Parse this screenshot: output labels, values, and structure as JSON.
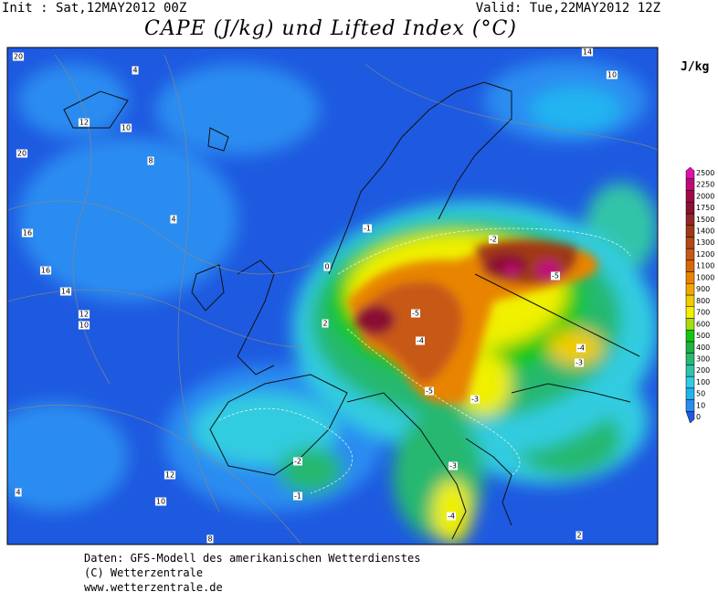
{
  "header": {
    "init": "Init : Sat,12MAY2012 00Z",
    "valid": "Valid: Tue,22MAY2012 12Z",
    "title": "CAPE (J/kg) und Lifted Index (°C)"
  },
  "legend": {
    "unit": "J/kg",
    "levels": [
      0,
      10,
      50,
      100,
      200,
      300,
      400,
      500,
      600,
      700,
      800,
      900,
      1000,
      1100,
      1200,
      1300,
      1400,
      1500,
      1750,
      2000,
      2250,
      2500
    ],
    "colors": [
      "#1e5ae0",
      "#2a8cf0",
      "#20b4f0",
      "#30cce0",
      "#30c4a8",
      "#28b870",
      "#20b040",
      "#10c810",
      "#a8dc10",
      "#f0f000",
      "#f0cc00",
      "#f0a800",
      "#e88400",
      "#d86800",
      "#c85818",
      "#b04818",
      "#a03818",
      "#902828",
      "#8c1030",
      "#a00848",
      "#c00878",
      "#e010a8"
    ]
  },
  "map": {
    "contour_labels": [
      20,
      4,
      12,
      10,
      20,
      16,
      16,
      14,
      12,
      10,
      4,
      8,
      -5,
      -5,
      -4,
      -5,
      -3,
      -2,
      -1,
      -4,
      -3,
      -2,
      -1,
      0,
      2,
      12,
      10,
      4,
      8,
      2,
      14,
      10,
      -4,
      -3
    ]
  },
  "footer": {
    "line1": "Daten: GFS-Modell des amerikanischen Wetterdienstes",
    "line2": "(C) Wetterzentrale",
    "line3": "www.wetterzentrale.de"
  }
}
